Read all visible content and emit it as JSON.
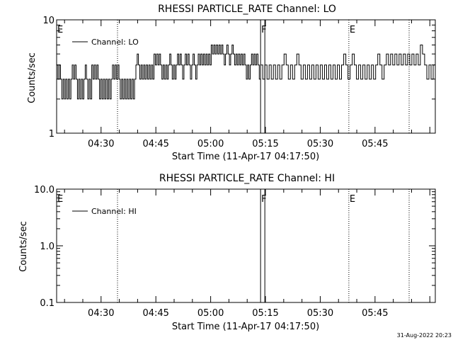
{
  "timestamp": "31-Aug-2022 20:23",
  "chart_data": [
    {
      "type": "line",
      "title": "RHESSI PARTICLE_RATE Channel: LO",
      "xlabel": "Start Time (11-Apr-17 04:17:50)",
      "ylabel": "Counts/sec",
      "yscale": "log",
      "ylim": [
        1,
        10
      ],
      "xlim": [
        "04:17:50",
        "06:01:30"
      ],
      "xticks": [
        "04:30",
        "04:45",
        "05:00",
        "05:15",
        "05:30",
        "05:45"
      ],
      "yticks": [
        "1",
        "10"
      ],
      "legend": {
        "entries": [
          "Channel: LO"
        ],
        "placement": "top-left"
      },
      "markers": [
        {
          "label": "E",
          "x": "04:17:50",
          "style": "dotted"
        },
        {
          "label": "",
          "x": "04:34:30",
          "style": "dotted"
        },
        {
          "label": "F",
          "x": "05:13:40",
          "style": "solid"
        },
        {
          "label": "",
          "x": "05:14:50",
          "style": "solid"
        },
        {
          "label": "E",
          "x": "05:37:50",
          "style": "dotted"
        },
        {
          "label": "",
          "x": "05:54:20",
          "style": "dotted"
        }
      ],
      "series": [
        {
          "name": "Channel: LO",
          "x_start": "04:17:50",
          "segments": [
            {
              "x_end": "05:13:40",
              "values": [
                4,
                3,
                4,
                3,
                2,
                3,
                2,
                3,
                2,
                3,
                2,
                3,
                4,
                3,
                4,
                3,
                2,
                3,
                2,
                3,
                2,
                3,
                4,
                3,
                2,
                3,
                2,
                4,
                3,
                4,
                3,
                4,
                3,
                2,
                3,
                2,
                3,
                2,
                3,
                2,
                3,
                2,
                3,
                4,
                3,
                4,
                3,
                4,
                3,
                2,
                3,
                2,
                3,
                2,
                3,
                2,
                3,
                2,
                3,
                2,
                3,
                4,
                5,
                4,
                3,
                4,
                3,
                4,
                3,
                4,
                3,
                4,
                3,
                4,
                3,
                5,
                4,
                5,
                4,
                5,
                4,
                3,
                4,
                3,
                4,
                3,
                4,
                5,
                4,
                3,
                4,
                3,
                4,
                5,
                4,
                5,
                4,
                3,
                4,
                5,
                4,
                5,
                4,
                3,
                4,
                5,
                4,
                3,
                4,
                5,
                4,
                5,
                4,
                5,
                4,
                5,
                4,
                5,
                4,
                6,
                5,
                6,
                5,
                6,
                5,
                6,
                5,
                6,
                5,
                4,
                5,
                6,
                5,
                4,
                5,
                6,
                5,
                4,
                5,
                4,
                5,
                4,
                5,
                4,
                5,
                4,
                3,
                4,
                3,
                4,
                5,
                4,
                5,
                4,
                5,
                4,
                3
              ]
            },
            {
              "x_end": "06:01:30",
              "values": [
                4,
                3,
                4,
                3,
                4,
                3,
                4,
                3,
                4,
                3,
                4,
                5,
                4,
                3,
                4,
                3,
                4,
                5,
                4,
                3,
                4,
                3,
                4,
                3,
                4,
                3,
                4,
                3,
                4,
                3,
                4,
                3,
                4,
                3,
                4,
                3,
                4,
                3,
                4,
                5,
                4,
                3,
                4,
                5,
                4,
                3,
                4,
                3,
                4,
                3,
                4,
                3,
                4,
                3,
                4,
                5,
                4,
                3,
                4,
                5,
                4,
                5,
                4,
                5,
                4,
                5,
                4,
                5,
                4,
                5,
                4,
                5,
                4,
                5,
                4,
                6,
                5,
                4,
                3,
                4,
                3,
                4
              ]
            }
          ]
        }
      ]
    },
    {
      "type": "line",
      "title": "RHESSI PARTICLE_RATE Channel: HI",
      "xlabel": "Start Time (11-Apr-17 04:17:50)",
      "ylabel": "Counts/sec",
      "yscale": "log",
      "ylim": [
        0.1,
        10
      ],
      "xlim": [
        "04:17:50",
        "06:01:30"
      ],
      "xticks": [
        "04:30",
        "04:45",
        "05:00",
        "05:15",
        "05:30",
        "05:45"
      ],
      "yticks": [
        "0.1",
        "1.0",
        "10.0"
      ],
      "legend": {
        "entries": [
          "Channel: HI"
        ],
        "placement": "top-left"
      },
      "markers": [
        {
          "label": "E",
          "x": "04:17:50",
          "style": "dotted"
        },
        {
          "label": "",
          "x": "04:34:30",
          "style": "dotted"
        },
        {
          "label": "F",
          "x": "05:13:40",
          "style": "solid"
        },
        {
          "label": "",
          "x": "05:14:50",
          "style": "solid"
        },
        {
          "label": "E",
          "x": "05:37:50",
          "style": "dotted"
        },
        {
          "label": "",
          "x": "05:54:20",
          "style": "dotted"
        }
      ],
      "series": [
        {
          "name": "Channel: HI",
          "segments": []
        }
      ]
    }
  ]
}
